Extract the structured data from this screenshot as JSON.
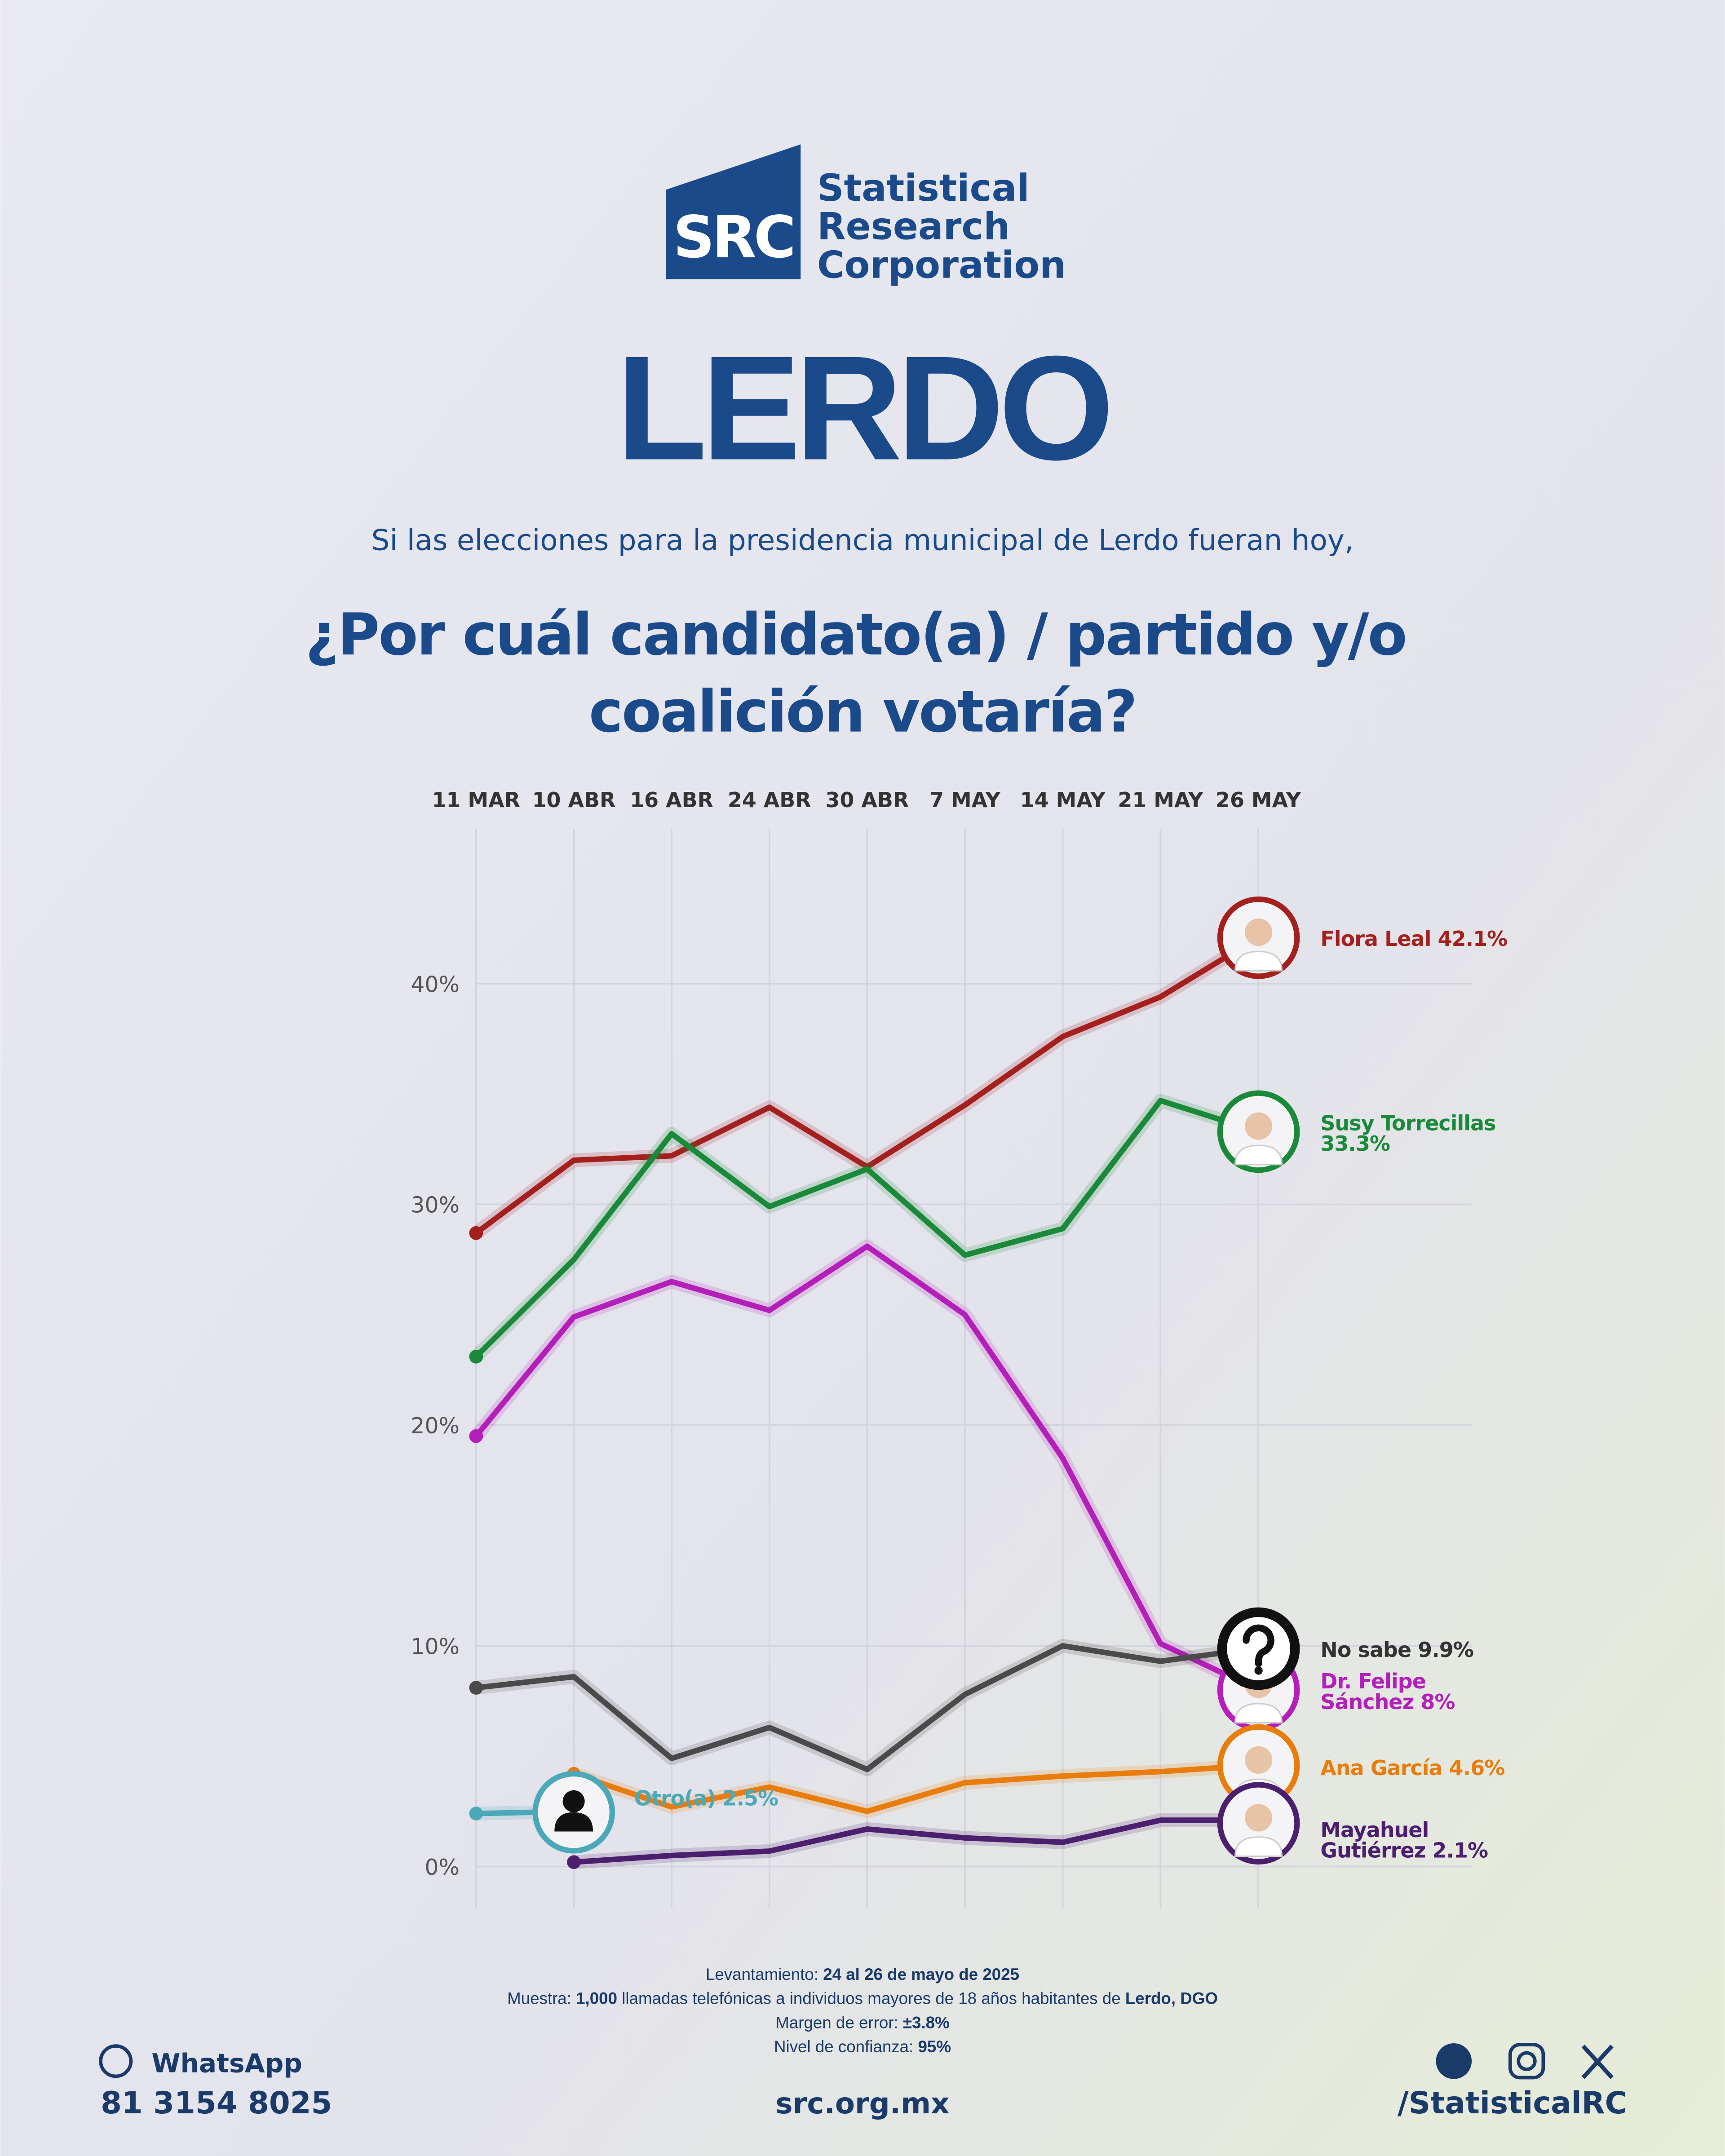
{
  "logo": {
    "mark": "SRC",
    "lines": [
      "Statistical",
      "Research",
      "Corporation"
    ]
  },
  "chart_data": {
    "type": "line",
    "title": "LERDO",
    "subtitle": "Si las elecciones para la presidencia municipal de Lerdo fueran hoy,",
    "question": [
      "¿Por cuál candidato(a) / partido y/o",
      "coalición votaría?"
    ],
    "categories": [
      "11 MAR",
      "10 ABR",
      "16 ABR",
      "24 ABR",
      "30 ABR",
      "7 MAY",
      "14 MAY",
      "21 MAY",
      "26 MAY"
    ],
    "series": [
      {
        "label": [
          "Flora Leal 42.1%"
        ],
        "color": "#a3201f",
        "values": [
          28.7,
          32.0,
          32.2,
          34.4,
          31.7,
          34.5,
          37.6,
          39.4,
          42.1
        ]
      },
      {
        "label": [
          "Susy Torrecillas",
          "33.3%"
        ],
        "color": "#1a8a3a",
        "values": [
          23.1,
          27.5,
          33.2,
          29.9,
          31.6,
          27.7,
          28.9,
          34.7,
          33.3
        ]
      },
      {
        "label": [
          "Dr. Felipe",
          "Sánchez 8%"
        ],
        "color": "#b31fb8",
        "values": [
          19.5,
          24.9,
          26.5,
          25.2,
          28.1,
          25.0,
          18.5,
          10.1,
          8.0
        ]
      },
      {
        "label": [
          "No sabe 9.9%"
        ],
        "color": "#4a4a4a",
        "values": [
          8.1,
          8.6,
          4.9,
          6.3,
          4.4,
          7.8,
          10.0,
          9.3,
          9.9
        ]
      },
      {
        "label": [
          "Ana García 4.6%"
        ],
        "color": "#e87d0d",
        "values": [
          null,
          4.2,
          2.7,
          3.6,
          2.5,
          3.8,
          4.1,
          4.3,
          4.6
        ]
      },
      {
        "label": [
          "Mayahuel",
          "Gutiérrez 2.1%"
        ],
        "color": "#4b1f6e",
        "values": [
          null,
          0.2,
          0.5,
          0.7,
          1.7,
          1.3,
          1.1,
          2.1,
          2.1
        ]
      },
      {
        "label": [
          "Otro(a) 2.5%"
        ],
        "color": "#4aa8b8",
        "values": [
          2.4,
          2.5,
          null,
          null,
          null,
          null,
          null,
          null,
          null
        ]
      }
    ],
    "ylim": [
      -1.9,
      47
    ],
    "yticks": [
      {
        "value": 0,
        "label": "0%"
      },
      {
        "value": 10,
        "label": "10%"
      },
      {
        "value": 20,
        "label": "20%"
      },
      {
        "value": 30,
        "label": "30%"
      },
      {
        "value": 40,
        "label": "40%"
      }
    ],
    "grid": true
  },
  "footer": {
    "notes": [
      [
        {
          "text": "Levantamiento: "
        },
        {
          "text": "24 al 26 de mayo de 2025",
          "bold": true
        }
      ],
      [
        {
          "text": "Muestra: "
        },
        {
          "text": "1,000",
          "bold": true
        },
        {
          "text": " llamadas telefónicas a individuos mayores de 18 años habitantes de "
        },
        {
          "text": "Lerdo, DGO",
          "bold": true
        }
      ],
      [
        {
          "text": "Margen de error: "
        },
        {
          "text": "±3.8%",
          "bold": true
        }
      ],
      [
        {
          "text": "Nivel de confianza: "
        },
        {
          "text": "95%",
          "bold": true
        }
      ]
    ],
    "whatsapp": "WhatsApp",
    "phone": "81 3154 8025",
    "website": "src.org.mx",
    "social": "/StatisticalRC"
  }
}
